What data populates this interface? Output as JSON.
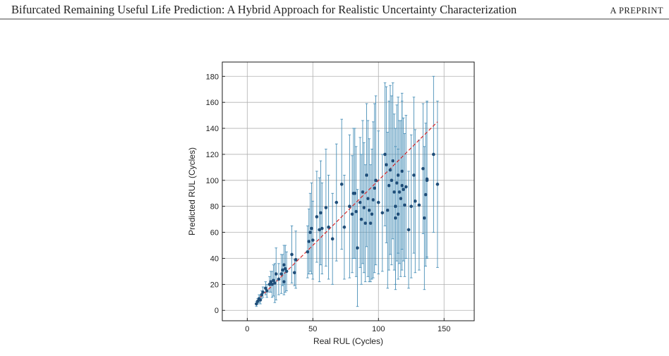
{
  "header": {
    "title": "Bifurcated Remaining Useful Life Prediction: A Hybrid Approach for Realistic Uncertainty Characterization",
    "label": "A PREPRINT"
  },
  "chart_data": {
    "type": "scatter",
    "x_label": "Real RUL (Cycles)",
    "y_label": "Predicted RUL (Cycles)",
    "x": [
      7,
      8,
      9,
      10,
      11,
      12,
      14,
      15,
      17,
      18,
      19,
      20,
      21,
      22,
      24,
      26,
      27,
      28,
      28,
      29,
      30,
      34,
      36,
      37,
      46,
      47,
      48,
      49,
      50,
      53,
      55,
      56,
      57,
      60,
      62,
      65,
      68,
      72,
      74,
      78,
      80,
      81,
      82,
      83,
      84,
      86,
      87,
      88,
      89,
      90,
      91,
      92,
      93,
      94,
      95,
      96,
      97,
      98,
      100,
      103,
      105,
      106,
      107,
      108,
      109,
      110,
      111,
      112,
      113,
      113,
      114,
      115,
      115,
      116,
      117,
      118,
      118,
      119,
      120,
      121,
      123,
      125,
      127,
      128,
      131,
      134,
      135,
      136,
      137,
      137,
      142,
      145
    ],
    "values": [
      5,
      7,
      9,
      8,
      12,
      14,
      17,
      15,
      20,
      22,
      20,
      23,
      21,
      28,
      24,
      28,
      31,
      35,
      22,
      32,
      30,
      43,
      29,
      39,
      45,
      53,
      60,
      63,
      54,
      72,
      62,
      75,
      63,
      79,
      64,
      55,
      83,
      97,
      64,
      80,
      74,
      90,
      90,
      76,
      48,
      83,
      70,
      91,
      79,
      67,
      104,
      86,
      77,
      67,
      74,
      85,
      94,
      100,
      83,
      75,
      120,
      112,
      77,
      96,
      108,
      100,
      115,
      91,
      80,
      71,
      98,
      74,
      104,
      91,
      86,
      96,
      107,
      93,
      81,
      95,
      62,
      80,
      104,
      84,
      81,
      109,
      71,
      89,
      101,
      100,
      120,
      97
    ],
    "errors": [
      2,
      2,
      3,
      3,
      3,
      4,
      5,
      5,
      6,
      8,
      10,
      12,
      15,
      20,
      12,
      15,
      12,
      15,
      10,
      18,
      15,
      22,
      10,
      22,
      20,
      25,
      30,
      35,
      30,
      35,
      40,
      40,
      35,
      45,
      40,
      35,
      45,
      50,
      40,
      55,
      45,
      50,
      50,
      50,
      45,
      50,
      50,
      55,
      50,
      45,
      55,
      60,
      55,
      45,
      50,
      60,
      65,
      65,
      55,
      45,
      55,
      60,
      60,
      65,
      65,
      65,
      60,
      60,
      60,
      55,
      60,
      50,
      60,
      55,
      60,
      65,
      60,
      55,
      55,
      55,
      45,
      55,
      60,
      55,
      50,
      50,
      55,
      55,
      60,
      60,
      60,
      64
    ],
    "color": "#1f4e79",
    "error_color": "#4a90b8",
    "reference_line": {
      "x": [
        7,
        145
      ],
      "y": [
        7,
        145
      ],
      "color": "#d62728"
    },
    "xlim": [
      -19,
      173
    ],
    "ylim": [
      -8,
      191
    ],
    "xticks": [
      0,
      50,
      100,
      150
    ],
    "yticks": [
      0,
      20,
      40,
      60,
      80,
      100,
      120,
      140,
      160,
      180
    ],
    "grid": true
  }
}
